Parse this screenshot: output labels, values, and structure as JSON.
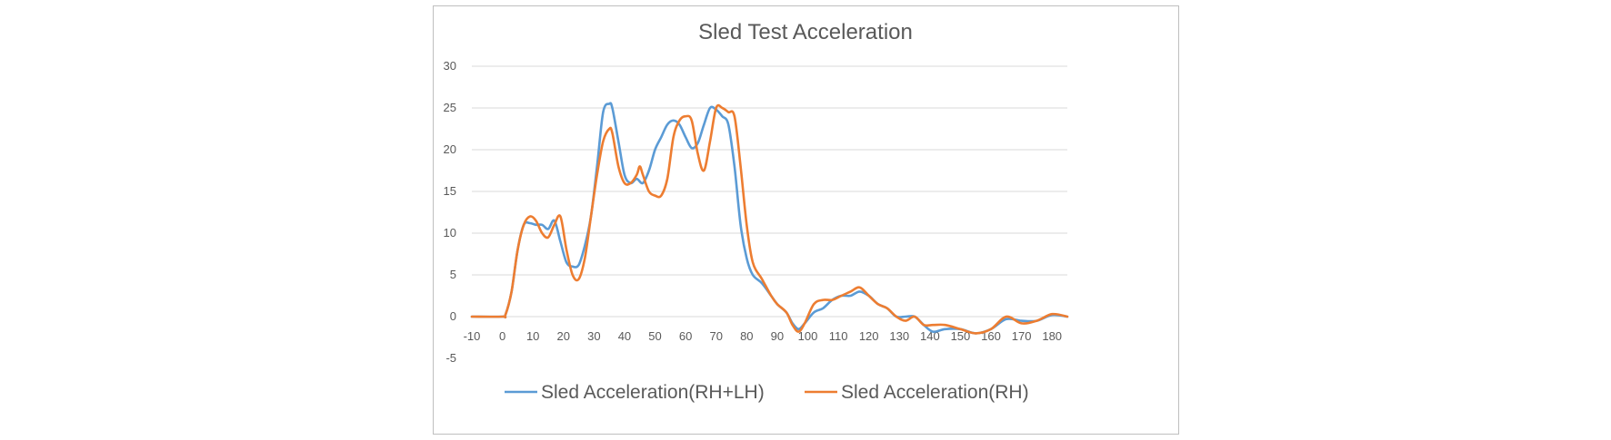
{
  "chart_data": {
    "type": "line",
    "title": "Sled Test Acceleration",
    "xlabel": "",
    "ylabel": "",
    "xlim": [
      -10,
      185
    ],
    "ylim": [
      -5,
      30
    ],
    "x_ticks": [
      -10,
      0,
      10,
      20,
      30,
      40,
      50,
      60,
      70,
      80,
      90,
      100,
      110,
      120,
      130,
      140,
      150,
      160,
      170,
      180
    ],
    "y_ticks": [
      -5,
      0,
      5,
      10,
      15,
      20,
      25,
      30
    ],
    "x_tick_labels": [
      "-10",
      "0",
      "10",
      "20",
      "30",
      "40",
      "50",
      "60",
      "70",
      "80",
      "90",
      "100",
      "110",
      "120",
      "130",
      "140",
      "150",
      "160",
      "170",
      "180"
    ],
    "y_tick_labels": [
      "-5",
      "0",
      "5",
      "10",
      "15",
      "20",
      "25",
      "30"
    ],
    "grid": true,
    "legend_position": "bottom",
    "series": [
      {
        "name": "Sled Acceleration(RH+LH)",
        "color": "#5b9bd5",
        "x": [
          -10,
          0,
          1,
          3,
          5,
          7,
          9,
          11,
          13,
          15,
          17,
          19,
          21,
          23,
          25,
          27,
          29,
          31,
          33,
          35,
          36,
          38,
          40,
          42,
          44,
          46,
          48,
          50,
          52,
          54,
          56,
          58,
          60,
          62,
          64,
          66,
          68,
          70,
          72,
          74,
          76,
          78,
          80,
          82,
          85,
          88,
          90,
          93,
          95,
          97,
          99,
          102,
          105,
          108,
          111,
          114,
          117,
          120,
          123,
          126,
          129,
          132,
          135,
          138,
          141,
          145,
          150,
          155,
          160,
          165,
          170,
          175,
          180,
          185
        ],
        "y": [
          0,
          0,
          0.2,
          3,
          8,
          11,
          11.2,
          11,
          11,
          10.5,
          11.5,
          9,
          6.5,
          6,
          6.2,
          8.5,
          12,
          18,
          24.5,
          25.5,
          25,
          21,
          17,
          16,
          16.5,
          16,
          17.5,
          20,
          21.5,
          23,
          23.5,
          23,
          21.5,
          20.2,
          20.8,
          23,
          25,
          24.8,
          24,
          23,
          18,
          11,
          7,
          5,
          4,
          2.5,
          1.5,
          0.5,
          -0.8,
          -1.5,
          -0.8,
          0.5,
          1,
          2,
          2.5,
          2.5,
          3,
          2.5,
          1.5,
          1,
          0,
          0,
          0,
          -1,
          -1.8,
          -1.5,
          -1.5,
          -2,
          -1.5,
          -0.3,
          -0.5,
          -0.5,
          0.2,
          0
        ]
      },
      {
        "name": "Sled Acceleration(RH)",
        "color": "#ed7d31",
        "x": [
          -10,
          0,
          1,
          3,
          5,
          7,
          9,
          11,
          13,
          15,
          17,
          19,
          21,
          23,
          25,
          27,
          29,
          31,
          33,
          35,
          36,
          38,
          40,
          42,
          44,
          45,
          46,
          48,
          50,
          52,
          54,
          56,
          58,
          60,
          62,
          64,
          66,
          68,
          70,
          72,
          74,
          76,
          78,
          80,
          82,
          85,
          88,
          90,
          93,
          95,
          97,
          99,
          102,
          105,
          108,
          111,
          114,
          117,
          120,
          123,
          126,
          129,
          132,
          135,
          138,
          141,
          145,
          150,
          155,
          160,
          165,
          170,
          175,
          180,
          185
        ],
        "y": [
          0,
          0,
          0.2,
          3,
          8,
          11,
          12,
          11.5,
          10,
          9.5,
          11,
          12,
          8,
          5,
          4.5,
          7,
          12,
          17,
          21,
          22.5,
          22,
          18,
          16,
          16,
          17,
          18,
          17,
          15,
          14.5,
          14.5,
          16.5,
          21.5,
          23.5,
          24,
          23.5,
          19.5,
          17.5,
          21,
          25,
          25,
          24.5,
          24,
          18,
          11,
          6.5,
          4.5,
          2.5,
          1.5,
          0.5,
          -1,
          -1.8,
          -0.8,
          1.5,
          2,
          2,
          2.5,
          3,
          3.5,
          2.5,
          1.5,
          1,
          0,
          -0.5,
          0,
          -1,
          -1,
          -1,
          -1.5,
          -2,
          -1.5,
          0,
          -0.8,
          -0.5,
          0.3,
          0
        ]
      }
    ]
  }
}
